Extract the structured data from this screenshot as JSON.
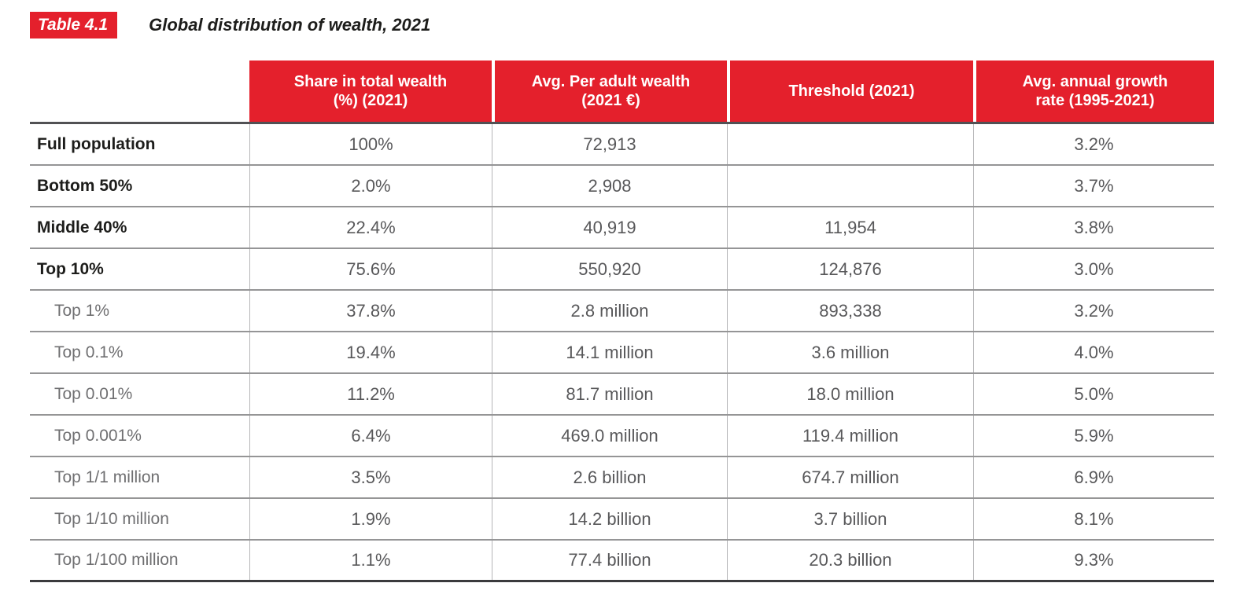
{
  "title": {
    "badge": "Table 4.1",
    "text": "Global distribution of wealth, 2021"
  },
  "colors": {
    "accent_red": "#E4202C",
    "header_text": "#ffffff",
    "label_dark": "#1d1d1b",
    "value_gray": "#58585a",
    "sublabel_gray": "#6f6f71",
    "row_line": "#959596",
    "bottom_line": "#3b3b3d"
  },
  "chart_data": {
    "type": "table",
    "title": "Global distribution of wealth, 2021",
    "columns": [
      "",
      "Share in total wealth\n(%) (2021)",
      "Avg. Per adult wealth\n(2021 €)",
      "Threshold (2021)",
      "Avg. annual growth\nrate (1995-2021)"
    ],
    "rows": [
      {
        "label": "Full population",
        "group": "main",
        "share": "100%",
        "avg_wealth": "72,913",
        "threshold": "",
        "growth": "3.2%"
      },
      {
        "label": "Bottom 50%",
        "group": "main",
        "share": "2.0%",
        "avg_wealth": "2,908",
        "threshold": "",
        "growth": "3.7%"
      },
      {
        "label": "Middle 40%",
        "group": "main",
        "share": "22.4%",
        "avg_wealth": "40,919",
        "threshold": "11,954",
        "growth": "3.8%"
      },
      {
        "label": "Top 10%",
        "group": "main",
        "share": "75.6%",
        "avg_wealth": "550,920",
        "threshold": "124,876",
        "growth": "3.0%"
      },
      {
        "label": "Top 1%",
        "group": "sub",
        "share": "37.8%",
        "avg_wealth": "2.8 million",
        "threshold": "893,338",
        "growth": "3.2%"
      },
      {
        "label": "Top 0.1%",
        "group": "sub",
        "share": "19.4%",
        "avg_wealth": "14.1 million",
        "threshold": "3.6 million",
        "growth": "4.0%"
      },
      {
        "label": "Top 0.01%",
        "group": "sub",
        "share": "11.2%",
        "avg_wealth": "81.7 million",
        "threshold": "18.0 million",
        "growth": "5.0%"
      },
      {
        "label": "Top 0.001%",
        "group": "sub",
        "share": "6.4%",
        "avg_wealth": "469.0 million",
        "threshold": "119.4 million",
        "growth": "5.9%"
      },
      {
        "label": "Top 1/1 million",
        "group": "sub",
        "share": "3.5%",
        "avg_wealth": "2.6 billion",
        "threshold": "674.7 million",
        "growth": "6.9%"
      },
      {
        "label": "Top 1/10 million",
        "group": "sub",
        "share": "1.9%",
        "avg_wealth": "14.2 billion",
        "threshold": "3.7 billion",
        "growth": "8.1%"
      },
      {
        "label": "Top 1/100 million",
        "group": "sub",
        "share": "1.1%",
        "avg_wealth": "77.4 billion",
        "threshold": "20.3 billion",
        "growth": "9.3%"
      }
    ]
  }
}
